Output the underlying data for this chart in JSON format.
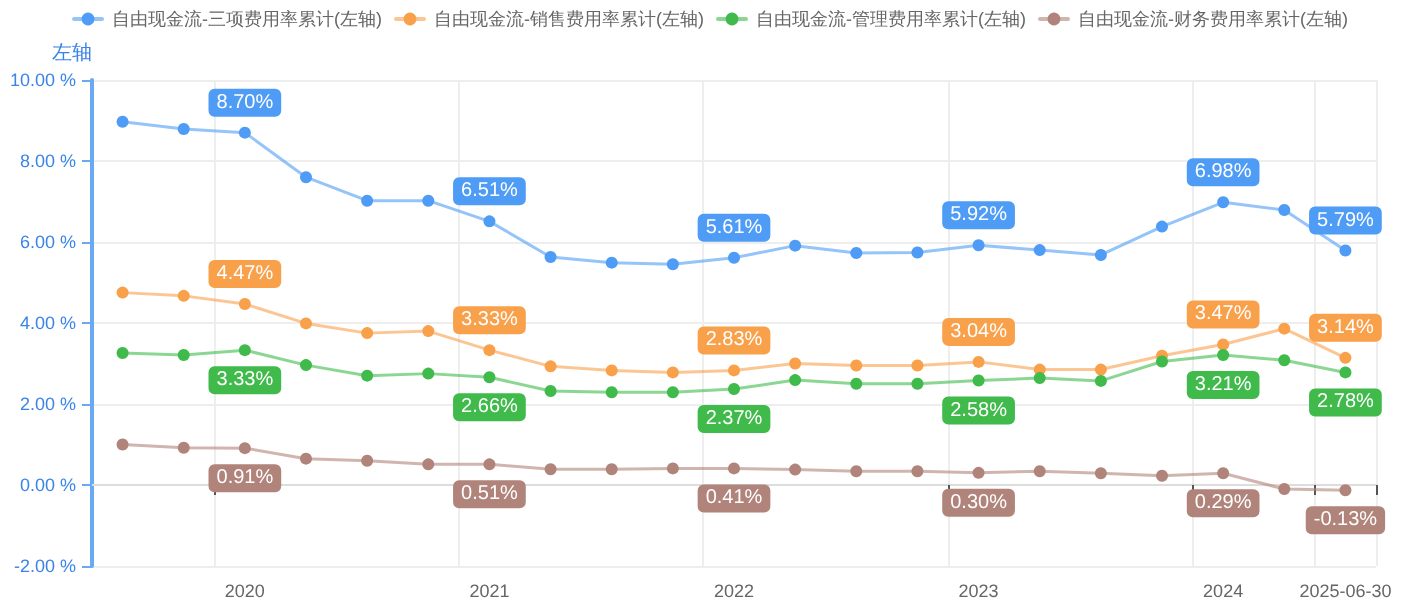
{
  "chart_data": {
    "type": "line",
    "ylabel": "左轴",
    "categories": [
      null,
      null,
      "2020",
      null,
      null,
      null,
      "2021",
      null,
      null,
      null,
      "2022",
      null,
      null,
      null,
      "2023",
      null,
      null,
      null,
      "2024",
      null,
      "2025-06-30"
    ],
    "series": [
      {
        "name": "自由现金流-三项费用率累计(左轴)",
        "color": "#4e9cf5",
        "values": [
          8.97,
          8.79,
          8.7,
          7.6,
          7.02,
          7.02,
          6.51,
          5.63,
          5.49,
          5.45,
          5.61,
          5.91,
          5.73,
          5.74,
          5.92,
          5.8,
          5.68,
          6.38,
          6.98,
          6.79,
          5.79
        ],
        "value_labels": [
          null,
          null,
          "8.70%",
          null,
          null,
          null,
          "6.51%",
          null,
          null,
          null,
          "5.61%",
          null,
          null,
          null,
          "5.92%",
          null,
          null,
          null,
          "6.98%",
          null,
          "5.79%"
        ]
      },
      {
        "name": "自由现金流-销售费用率累计(左轴)",
        "color": "#f9a04b",
        "values": [
          4.75,
          4.67,
          4.47,
          3.99,
          3.75,
          3.8,
          3.33,
          2.93,
          2.83,
          2.78,
          2.83,
          3.0,
          2.95,
          2.95,
          3.04,
          2.85,
          2.85,
          3.19,
          3.47,
          3.86,
          3.14
        ],
        "value_labels": [
          null,
          null,
          "4.47%",
          null,
          null,
          null,
          "3.33%",
          null,
          null,
          null,
          "2.83%",
          null,
          null,
          null,
          "3.04%",
          null,
          null,
          null,
          "3.47%",
          null,
          "3.14%"
        ]
      },
      {
        "name": "自由现金流-管理费用率累计(左轴)",
        "color": "#3fba4b",
        "values": [
          3.26,
          3.21,
          3.33,
          2.96,
          2.7,
          2.75,
          2.66,
          2.32,
          2.29,
          2.29,
          2.37,
          2.59,
          2.5,
          2.5,
          2.58,
          2.64,
          2.57,
          3.05,
          3.21,
          3.08,
          2.78
        ],
        "value_labels": [
          null,
          null,
          "3.33%",
          null,
          null,
          null,
          "2.66%",
          null,
          null,
          null,
          "2.37%",
          null,
          null,
          null,
          "2.58%",
          null,
          null,
          null,
          "3.21%",
          null,
          "2.78%"
        ]
      },
      {
        "name": "自由现金流-财务费用率累计(左轴)",
        "color": "#b0847a",
        "values": [
          1.0,
          0.92,
          0.91,
          0.65,
          0.6,
          0.51,
          0.51,
          0.39,
          0.39,
          0.41,
          0.41,
          0.38,
          0.34,
          0.34,
          0.3,
          0.34,
          0.29,
          0.23,
          0.29,
          -0.1,
          -0.13
        ],
        "value_labels": [
          null,
          null,
          "0.91%",
          null,
          null,
          null,
          "0.51%",
          null,
          null,
          null,
          "0.41%",
          null,
          null,
          null,
          "0.30%",
          null,
          null,
          null,
          "0.29%",
          null,
          "-0.13%"
        ]
      }
    ],
    "ylim": [
      -2,
      10
    ],
    "yticks": [
      {
        "value": -2,
        "label": "-2.00 %"
      },
      {
        "value": 0,
        "label": "0.00 %"
      },
      {
        "value": 2,
        "label": "2.00 %"
      },
      {
        "value": 4,
        "label": "4.00 %"
      },
      {
        "value": 6,
        "label": "6.00 %"
      },
      {
        "value": 8,
        "label": "8.00 %"
      },
      {
        "value": 10,
        "label": "10.00 %"
      }
    ],
    "grid": true,
    "legend": "top",
    "marker": "circle",
    "line_style": "solid"
  }
}
